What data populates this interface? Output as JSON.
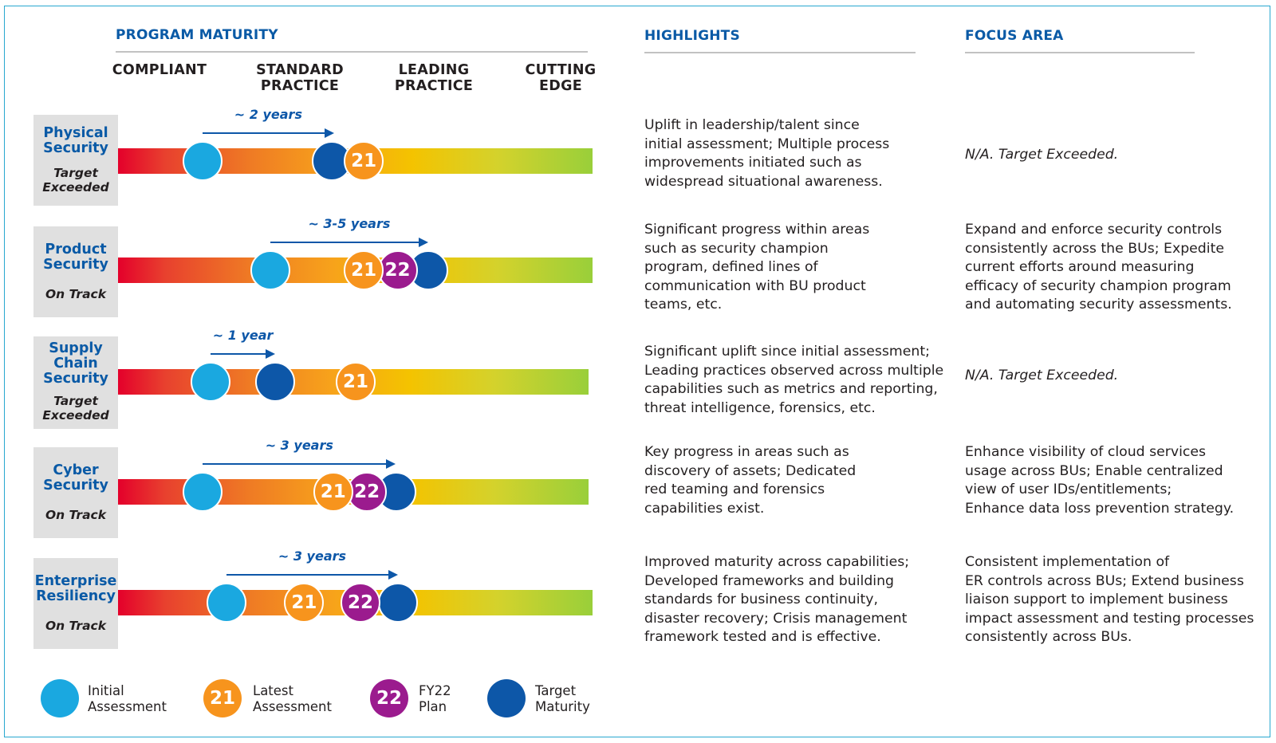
{
  "headers": {
    "program_maturity": "PROGRAM MATURITY",
    "highlights": "HIGHLIGHTS",
    "focus_area": "FOCUS AREA"
  },
  "maturity_levels": [
    {
      "line1": "COMPLIANT",
      "line2": ""
    },
    {
      "line1": "STANDARD",
      "line2": "PRACTICE"
    },
    {
      "line1": "LEADING",
      "line2": "PRACTICE"
    },
    {
      "line1": "CUTTING",
      "line2": "EDGE"
    }
  ],
  "colors": {
    "header_blue": "#0a5aa6",
    "initial_assessment": "#1aa8e0",
    "latest_assessment": "#f7941d",
    "fy22_plan": "#9b1b8e",
    "target_maturity": "#0d57a8",
    "scale_start": "#e4002b",
    "scale_end": "#99cf3a",
    "label_bg": "#e0e0e0"
  },
  "programs": [
    {
      "name_line1": "Physical",
      "name_line2": "Security",
      "name_line3": "",
      "status_line1": "Target",
      "status_line2": "Exceeded",
      "timeline": "~ 2 years",
      "initial_level": 0.55,
      "target_level": 1.35,
      "latest": {
        "label": "21",
        "level": 1.55
      },
      "plan": null,
      "highlights": [
        "Uplift in leadership/talent since",
        "initial assessment; Multiple process",
        "improvements initiated such as",
        "widespread situational awareness."
      ],
      "focus": [
        "N/A. Target Exceeded."
      ],
      "focus_na": true
    },
    {
      "name_line1": "Product",
      "name_line2": "Security",
      "name_line3": "",
      "status_line1": "On Track",
      "status_line2": "",
      "timeline": "~ 3-5 years",
      "initial_level": 0.97,
      "target_level": 1.95,
      "latest": {
        "label": "21",
        "level": 1.55
      },
      "plan": {
        "label": "22",
        "level": 1.76
      },
      "highlights": [
        "Significant progress within areas",
        "such as security champion",
        "program, defined lines of",
        "communication with BU product",
        "teams, etc."
      ],
      "focus": [
        "Expand and enforce security controls",
        "consistently across the BUs; Expedite",
        "current efforts around measuring",
        "efficacy of security champion program",
        "and automating security assessments."
      ],
      "focus_na": false
    },
    {
      "name_line1": "Supply",
      "name_line2": "Chain",
      "name_line3": "Security",
      "status_line1": "Target",
      "status_line2": "Exceeded",
      "timeline": "~ 1 year",
      "initial_level": 0.6,
      "target_level": 1.0,
      "latest": {
        "label": "21",
        "level": 1.5
      },
      "plan": null,
      "highlights": [
        "Significant uplift since initial assessment;",
        "Leading practices observed across multiple",
        "capabilities such as metrics and reporting,",
        "threat intelligence, forensics, etc."
      ],
      "focus": [
        "N/A. Target Exceeded."
      ],
      "focus_na": true
    },
    {
      "name_line1": "Cyber",
      "name_line2": "Security",
      "name_line3": "",
      "status_line1": "On Track",
      "status_line2": "",
      "timeline": "~ 3 years",
      "initial_level": 0.55,
      "target_level": 1.75,
      "latest": {
        "label": "21",
        "level": 1.36
      },
      "plan": {
        "label": "22",
        "level": 1.57
      },
      "highlights": [
        "Key progress in areas such as",
        "discovery of assets; Dedicated",
        "red teaming and forensics",
        "capabilities exist."
      ],
      "focus": [
        "Enhance visibility of cloud services",
        "usage across BUs; Enable centralized",
        "view of user IDs/entitlements;",
        "Enhance data loss prevention strategy."
      ],
      "focus_na": false
    },
    {
      "name_line1": "Enterprise",
      "name_line2": "Resiliency",
      "name_line3": "",
      "status_line1": "On Track",
      "status_line2": "",
      "timeline": "~ 3 years",
      "initial_level": 0.7,
      "target_level": 1.76,
      "latest": {
        "label": "21",
        "level": 1.18
      },
      "plan": {
        "label": "22",
        "level": 1.53
      },
      "highlights": [
        "Improved maturity across capabilities;",
        "Developed frameworks and building",
        "standards for business continuity,",
        "disaster recovery; Crisis management",
        "framework tested and is effective."
      ],
      "focus": [
        "Consistent implementation of",
        "ER controls across BUs; Extend business",
        "liaison support to implement business",
        "impact assessment and testing processes",
        "consistently across BUs."
      ],
      "focus_na": false
    }
  ],
  "legend": [
    {
      "key": "initial",
      "symbol": "",
      "line1": "Initial",
      "line2": "Assessment"
    },
    {
      "key": "latest",
      "symbol": "21",
      "line1": "Latest",
      "line2": "Assessment"
    },
    {
      "key": "plan",
      "symbol": "22",
      "line1": "FY22",
      "line2": "Plan"
    },
    {
      "key": "target",
      "symbol": "",
      "line1": "Target",
      "line2": "Maturity"
    }
  ]
}
